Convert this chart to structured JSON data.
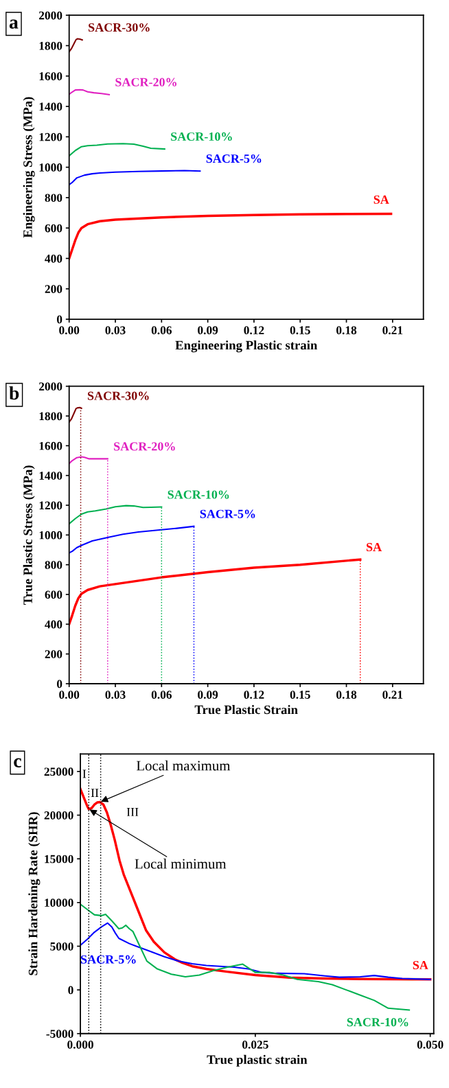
{
  "chart_data": [
    {
      "type": "line",
      "xlabel": "Engineering Plastic strain",
      "ylabel": "Engineering Stress (MPa)",
      "annotations": [
        "a"
      ],
      "xlim": [
        0,
        0.23
      ],
      "ylim": [
        0,
        2000
      ],
      "xticks": [
        {
          "value": 0,
          "label": "0.00"
        },
        {
          "value": 0.03,
          "label": "0.03"
        },
        {
          "value": 0.06,
          "label": "0.06"
        },
        {
          "value": 0.09,
          "label": "0.09"
        },
        {
          "value": 0.12,
          "label": "0.12"
        },
        {
          "value": 0.15,
          "label": "0.15"
        },
        {
          "value": 0.18,
          "label": "0.18"
        },
        {
          "value": 0.21,
          "label": "0.21"
        }
      ],
      "yticks": [
        0,
        200,
        400,
        600,
        800,
        1000,
        1200,
        1400,
        1600,
        1800,
        2000
      ],
      "grid": false,
      "legend": false,
      "line_style": "solid",
      "series": [
        {
          "name": "SA",
          "color": "#ff0000",
          "x": [
            0,
            0.002,
            0.004,
            0.006,
            0.008,
            0.012,
            0.02,
            0.03,
            0.06,
            0.09,
            0.12,
            0.15,
            0.18,
            0.209
          ],
          "values": [
            400,
            460,
            520,
            570,
            600,
            625,
            645,
            655,
            670,
            680,
            686,
            690,
            692,
            693
          ]
        },
        {
          "name": "SACR-5%",
          "color": "#0000ff",
          "x": [
            0,
            0.002,
            0.005,
            0.01,
            0.015,
            0.02,
            0.03,
            0.045,
            0.06,
            0.075,
            0.085
          ],
          "values": [
            885,
            900,
            930,
            948,
            957,
            962,
            968,
            972,
            975,
            978,
            975
          ]
        },
        {
          "name": "SACR-10%",
          "color": "#00b050",
          "x": [
            0,
            0.004,
            0.008,
            0.012,
            0.018,
            0.025,
            0.035,
            0.042,
            0.048,
            0.053,
            0.062
          ],
          "values": [
            1075,
            1110,
            1135,
            1142,
            1145,
            1153,
            1155,
            1152,
            1138,
            1125,
            1120
          ]
        },
        {
          "name": "SACR-20%",
          "color": "#e020c0",
          "x": [
            0,
            0.002,
            0.004,
            0.007,
            0.009,
            0.012,
            0.016,
            0.021,
            0.026
          ],
          "values": [
            1480,
            1495,
            1508,
            1510,
            1508,
            1496,
            1490,
            1485,
            1478
          ]
        },
        {
          "name": "SACR-30%",
          "color": "#800000",
          "x": [
            0,
            0.0015,
            0.003,
            0.0045,
            0.0055,
            0.007,
            0.0085
          ],
          "values": [
            1760,
            1780,
            1810,
            1840,
            1845,
            1843,
            1838
          ]
        }
      ]
    },
    {
      "type": "line",
      "xlabel": "True Plastic Strain",
      "ylabel": "True Plastic Stress (MPa)",
      "annotations": [
        "b"
      ],
      "xlim": [
        0,
        0.23
      ],
      "ylim": [
        0,
        2000
      ],
      "xticks": [
        {
          "value": 0,
          "label": "0.00"
        },
        {
          "value": 0.03,
          "label": "0.03"
        },
        {
          "value": 0.06,
          "label": "0.06"
        },
        {
          "value": 0.09,
          "label": "0.09"
        },
        {
          "value": 0.12,
          "label": "0.12"
        },
        {
          "value": 0.15,
          "label": "0.15"
        },
        {
          "value": 0.18,
          "label": "0.18"
        },
        {
          "value": 0.21,
          "label": "0.21"
        }
      ],
      "yticks": [
        0,
        200,
        400,
        600,
        800,
        1000,
        1200,
        1400,
        1600,
        1800,
        2000
      ],
      "grid": false,
      "legend": false,
      "line_style": "solid",
      "series": [
        {
          "name": "SA",
          "color": "#ff0000",
          "x": [
            0,
            0.002,
            0.004,
            0.006,
            0.008,
            0.012,
            0.02,
            0.03,
            0.06,
            0.09,
            0.12,
            0.15,
            0.189
          ],
          "values": [
            400,
            460,
            525,
            575,
            605,
            630,
            655,
            670,
            715,
            750,
            780,
            800,
            835
          ]
        },
        {
          "name": "SACR-5%",
          "color": "#0000ff",
          "x": [
            0,
            0.002,
            0.005,
            0.008,
            0.015,
            0.026,
            0.035,
            0.045,
            0.06,
            0.07,
            0.081
          ],
          "values": [
            880,
            890,
            915,
            930,
            960,
            985,
            1005,
            1020,
            1035,
            1045,
            1058
          ]
        },
        {
          "name": "SACR-10%",
          "color": "#00b050",
          "x": [
            0,
            0.004,
            0.008,
            0.012,
            0.017,
            0.024,
            0.03,
            0.037,
            0.042,
            0.048,
            0.053,
            0.06
          ],
          "values": [
            1075,
            1110,
            1140,
            1155,
            1162,
            1175,
            1190,
            1197,
            1195,
            1185,
            1186,
            1188
          ]
        },
        {
          "name": "SACR-20%",
          "color": "#e020c0",
          "x": [
            0,
            0.002,
            0.005,
            0.008,
            0.01,
            0.013,
            0.018,
            0.025
          ],
          "values": [
            1480,
            1500,
            1520,
            1525,
            1522,
            1512,
            1512,
            1512
          ]
        },
        {
          "name": "SACR-30%",
          "color": "#800000",
          "x": [
            0,
            0.0015,
            0.003,
            0.0045,
            0.0055,
            0.007,
            0.008
          ],
          "values": [
            1760,
            1780,
            1815,
            1850,
            1855,
            1857,
            1852
          ]
        }
      ],
      "ref_lines": [
        {
          "axis": "x",
          "value": 0.0075,
          "color": "#800000",
          "line_style": "dotted"
        },
        {
          "axis": "x",
          "value": 0.025,
          "color": "#e020c0",
          "line_style": "dotted"
        },
        {
          "axis": "x",
          "value": 0.06,
          "color": "#00b050",
          "line_style": "dotted"
        },
        {
          "axis": "x",
          "value": 0.081,
          "color": "#0000ff",
          "line_style": "dotted"
        },
        {
          "axis": "x",
          "value": 0.189,
          "color": "#ff0000",
          "line_style": "dotted"
        }
      ]
    },
    {
      "type": "line",
      "xlabel": "True plastic strain",
      "ylabel": "Strain Hardening Rate (SHR)",
      "annotations": [
        "c",
        "I",
        "II",
        "III",
        {
          "text": "Local maximum",
          "x": 0.0028,
          "y": 21500
        },
        {
          "text": "Local minimum",
          "x": 0.0012,
          "y": 20700
        }
      ],
      "xlim": [
        0,
        0.0505
      ],
      "ylim": [
        -5000,
        27000
      ],
      "xticks": [
        {
          "value": 0,
          "label": "0.000"
        },
        {
          "value": 0.025,
          "label": "0.025"
        },
        {
          "value": 0.05,
          "label": "0.050"
        }
      ],
      "yticks": [
        -5000,
        0,
        5000,
        10000,
        15000,
        20000,
        25000
      ],
      "grid": false,
      "legend": false,
      "line_style": "solid",
      "series": [
        {
          "name": "SA",
          "color": "#ff0000",
          "x": [
            0,
            0.0005,
            0.001,
            0.0012,
            0.0016,
            0.002,
            0.0024,
            0.0028,
            0.0033,
            0.0038,
            0.0043,
            0.0049,
            0.0056,
            0.0062,
            0.0068,
            0.0075,
            0.0082,
            0.0094,
            0.0105,
            0.012,
            0.0135,
            0.0146,
            0.016,
            0.018,
            0.0208,
            0.025,
            0.03,
            0.035,
            0.04,
            0.045,
            0.05
          ],
          "values": [
            23000,
            22000,
            21000,
            20700,
            20800,
            21200,
            21450,
            21500,
            21200,
            20300,
            19000,
            17200,
            14800,
            13200,
            12000,
            10600,
            9200,
            6800,
            5500,
            4300,
            3500,
            3100,
            2700,
            2400,
            2100,
            1700,
            1400,
            1300,
            1250,
            1220,
            1200
          ]
        },
        {
          "name": "SACR-5%",
          "color": "#0000ff",
          "x": [
            0,
            0.001,
            0.002,
            0.003,
            0.0039,
            0.0045,
            0.005,
            0.0055,
            0.007,
            0.008,
            0.01,
            0.012,
            0.014,
            0.016,
            0.018,
            0.02,
            0.022,
            0.024,
            0.026,
            0.028,
            0.032,
            0.035,
            0.037,
            0.04,
            0.042,
            0.044,
            0.046,
            0.05
          ],
          "values": [
            5100,
            5800,
            6600,
            7200,
            7650,
            7200,
            6500,
            5900,
            5300,
            5000,
            4400,
            3800,
            3300,
            3000,
            2800,
            2700,
            2600,
            2400,
            2000,
            1900,
            1850,
            1600,
            1450,
            1500,
            1650,
            1450,
            1300,
            1200
          ]
        },
        {
          "name": "SACR-10%",
          "color": "#00b050",
          "x": [
            0,
            0.001,
            0.002,
            0.003,
            0.0036,
            0.0045,
            0.0055,
            0.006,
            0.0065,
            0.007,
            0.0075,
            0.0085,
            0.0095,
            0.011,
            0.013,
            0.015,
            0.017,
            0.019,
            0.021,
            0.0232,
            0.025,
            0.027,
            0.029,
            0.031,
            0.034,
            0.036,
            0.038,
            0.04,
            0.042,
            0.044,
            0.047
          ],
          "values": [
            9800,
            9200,
            8600,
            8500,
            8650,
            7900,
            7000,
            7100,
            7400,
            7000,
            6700,
            5000,
            3300,
            2400,
            1800,
            1500,
            1700,
            2200,
            2600,
            2950,
            2000,
            2000,
            1700,
            1200,
            950,
            600,
            0,
            -600,
            -1200,
            -2100,
            -2300
          ]
        }
      ],
      "ref_lines": [
        {
          "axis": "x",
          "value": 0.0012,
          "color": "#000000",
          "line_style": "dotted"
        },
        {
          "axis": "x",
          "value": 0.0029,
          "color": "#000000",
          "line_style": "dotted"
        }
      ]
    }
  ]
}
